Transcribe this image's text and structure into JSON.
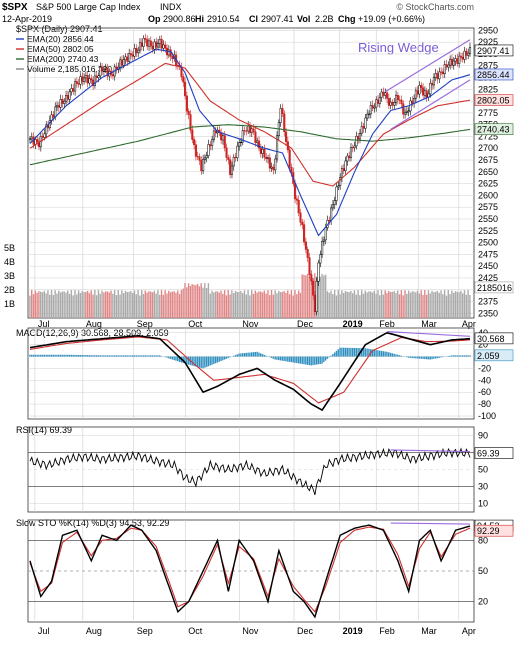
{
  "header": {
    "symbol": "$SPX",
    "name": "S&P 500 Large Cap Index",
    "exchange": "INDX",
    "date": "12-Apr-2019",
    "op_label": "Op",
    "op": "2900.86",
    "hi_label": "Hi",
    "hi": "2910.54",
    "cl_label": "Cl",
    "cl": "2907.41",
    "vol_label": "Vol",
    "vol": "2.2B",
    "chg_label": "Chg",
    "chg": "+19.09 (+0.66%)",
    "watermark": "© StockCharts.com"
  },
  "colors": {
    "price": "#000000",
    "ema20": "#1f3fbf",
    "ema50": "#d0302a",
    "ema200": "#2f6b2f",
    "up_candle": "#000000",
    "down_candle": "#cc2222",
    "volume_up": "#aaaaaa",
    "volume_down": "#e08888",
    "macd_line": "#000000",
    "signal_line": "#d03030",
    "histogram": "#2f8fbf",
    "rsi": "#000000",
    "stoch_k": "#000000",
    "stoch_d": "#d03030",
    "divergence": "#9a6ce0",
    "grid": "#cfcfcf",
    "label_box": "#ffffff"
  },
  "chart_data": {
    "type": "line",
    "x_labels": [
      "Jul",
      "Aug",
      "Sep",
      "Oct",
      "Nov",
      "Dec",
      "2019",
      "Feb",
      "Mar",
      "Apr"
    ],
    "x_label_positions": [
      2.7,
      29.3,
      57.5,
      86.1,
      116.1,
      146.4,
      171.7,
      192.0,
      215.3,
      237.8
    ],
    "x_bold": "2019",
    "n_bars": 245,
    "price_panel": {
      "legend_title": "$SPX (Daily) 2907.41",
      "legend": [
        {
          "key": "ema20",
          "label": "EMA(20) 2856.44"
        },
        {
          "key": "ema50",
          "label": "EMA(50) 2802.05"
        },
        {
          "key": "ema200",
          "label": "EMA(200) 2740.43"
        },
        {
          "key": "volume",
          "label": "Volume 2,185,016,320"
        }
      ],
      "annotation": "Rising Wedge",
      "y_ticks": [
        2350,
        2375,
        2400,
        2425,
        2450,
        2475,
        2500,
        2525,
        2550,
        2575,
        2600,
        2625,
        2650,
        2675,
        2700,
        2725,
        2750,
        2775,
        2800,
        2825,
        2850,
        2875,
        2900,
        2925,
        2950
      ],
      "ylim": [
        2340,
        2955
      ],
      "last_labels": [
        "2907.41",
        "2856.44",
        "2802.05",
        "2740.43"
      ],
      "volume_ticks": [
        "1B",
        "2B",
        "3B",
        "4B",
        "5B"
      ],
      "volume_last": "2185016",
      "price_path": [
        [
          0,
          2720
        ],
        [
          5,
          2710
        ],
        [
          10,
          2750
        ],
        [
          15,
          2790
        ],
        [
          20,
          2805
        ],
        [
          25,
          2835
        ],
        [
          30,
          2850
        ],
        [
          35,
          2840
        ],
        [
          40,
          2870
        ],
        [
          45,
          2855
        ],
        [
          50,
          2880
        ],
        [
          55,
          2895
        ],
        [
          60,
          2910
        ],
        [
          63,
          2930
        ],
        [
          68,
          2915
        ],
        [
          72,
          2925
        ],
        [
          76,
          2905
        ],
        [
          80,
          2890
        ],
        [
          84,
          2860
        ],
        [
          87,
          2785
        ],
        [
          91,
          2700
        ],
        [
          95,
          2660
        ],
        [
          99,
          2700
        ],
        [
          103,
          2740
        ],
        [
          107,
          2720
        ],
        [
          111,
          2650
        ],
        [
          115,
          2700
        ],
        [
          119,
          2740
        ],
        [
          123,
          2740
        ],
        [
          127,
          2700
        ],
        [
          131,
          2680
        ],
        [
          135,
          2650
        ],
        [
          139,
          2790
        ],
        [
          143,
          2690
        ],
        [
          147,
          2600
        ],
        [
          151,
          2530
        ],
        [
          155,
          2440
        ],
        [
          158,
          2360
        ],
        [
          160,
          2460
        ],
        [
          164,
          2530
        ],
        [
          168,
          2580
        ],
        [
          172,
          2640
        ],
        [
          176,
          2680
        ],
        [
          180,
          2710
        ],
        [
          184,
          2740
        ],
        [
          188,
          2780
        ],
        [
          192,
          2795
        ],
        [
          196,
          2820
        ],
        [
          200,
          2790
        ],
        [
          204,
          2810
        ],
        [
          208,
          2770
        ],
        [
          212,
          2800
        ],
        [
          216,
          2830
        ],
        [
          220,
          2810
        ],
        [
          224,
          2850
        ],
        [
          228,
          2860
        ],
        [
          232,
          2880
        ],
        [
          236,
          2885
        ],
        [
          240,
          2895
        ],
        [
          244,
          2907
        ]
      ],
      "ema20_path": [
        [
          0,
          2710
        ],
        [
          20,
          2790
        ],
        [
          40,
          2850
        ],
        [
          60,
          2890
        ],
        [
          70,
          2910
        ],
        [
          78,
          2905
        ],
        [
          86,
          2860
        ],
        [
          94,
          2780
        ],
        [
          104,
          2735
        ],
        [
          116,
          2720
        ],
        [
          130,
          2700
        ],
        [
          140,
          2690
        ],
        [
          150,
          2600
        ],
        [
          160,
          2515
        ],
        [
          170,
          2560
        ],
        [
          180,
          2650
        ],
        [
          190,
          2730
        ],
        [
          200,
          2780
        ],
        [
          210,
          2790
        ],
        [
          222,
          2810
        ],
        [
          234,
          2845
        ],
        [
          244,
          2856
        ]
      ],
      "ema50_path": [
        [
          0,
          2700
        ],
        [
          20,
          2750
        ],
        [
          40,
          2800
        ],
        [
          60,
          2845
        ],
        [
          75,
          2880
        ],
        [
          86,
          2870
        ],
        [
          100,
          2800
        ],
        [
          116,
          2760
        ],
        [
          130,
          2735
        ],
        [
          145,
          2700
        ],
        [
          157,
          2630
        ],
        [
          168,
          2620
        ],
        [
          180,
          2660
        ],
        [
          196,
          2730
        ],
        [
          210,
          2760
        ],
        [
          226,
          2790
        ],
        [
          244,
          2802
        ]
      ],
      "ema200_path": [
        [
          0,
          2665
        ],
        [
          30,
          2690
        ],
        [
          60,
          2715
        ],
        [
          90,
          2745
        ],
        [
          110,
          2750
        ],
        [
          130,
          2745
        ],
        [
          150,
          2735
        ],
        [
          170,
          2720
        ],
        [
          190,
          2715
        ],
        [
          210,
          2722
        ],
        [
          230,
          2732
        ],
        [
          244,
          2740
        ]
      ],
      "wedge_upper": [
        [
          197,
          2820
        ],
        [
          244,
          2930
        ]
      ],
      "wedge_lower": [
        [
          200,
          2740
        ],
        [
          244,
          2845
        ]
      ]
    },
    "macd_panel": {
      "legend": "MACD(12,26,9) 30.568, 28.509, 2.059",
      "y_ticks": [
        -100,
        -80,
        -60,
        -40,
        -20,
        0,
        20,
        40
      ],
      "ylim": [
        -105,
        48
      ],
      "last_labels": [
        "30.568",
        "2.059"
      ],
      "macd_path": [
        [
          0,
          15
        ],
        [
          20,
          25
        ],
        [
          40,
          30
        ],
        [
          60,
          35
        ],
        [
          72,
          30
        ],
        [
          86,
          -10
        ],
        [
          96,
          -60
        ],
        [
          104,
          -50
        ],
        [
          116,
          -30
        ],
        [
          126,
          -20
        ],
        [
          136,
          -40
        ],
        [
          146,
          -55
        ],
        [
          156,
          -80
        ],
        [
          162,
          -90
        ],
        [
          172,
          -45
        ],
        [
          186,
          20
        ],
        [
          198,
          40
        ],
        [
          210,
          30
        ],
        [
          222,
          20
        ],
        [
          234,
          28
        ],
        [
          244,
          30
        ]
      ],
      "signal_path": [
        [
          0,
          12
        ],
        [
          20,
          22
        ],
        [
          40,
          28
        ],
        [
          60,
          33
        ],
        [
          76,
          28
        ],
        [
          90,
          -10
        ],
        [
          102,
          -40
        ],
        [
          116,
          -35
        ],
        [
          130,
          -30
        ],
        [
          146,
          -45
        ],
        [
          160,
          -78
        ],
        [
          174,
          -60
        ],
        [
          190,
          10
        ],
        [
          206,
          32
        ],
        [
          220,
          25
        ],
        [
          234,
          26
        ],
        [
          244,
          28
        ]
      ],
      "hist_path": [
        [
          0,
          3
        ],
        [
          20,
          3
        ],
        [
          40,
          2
        ],
        [
          60,
          2
        ],
        [
          72,
          2
        ],
        [
          86,
          -12
        ],
        [
          96,
          -20
        ],
        [
          104,
          -10
        ],
        [
          116,
          5
        ],
        [
          126,
          8
        ],
        [
          136,
          -5
        ],
        [
          146,
          -10
        ],
        [
          156,
          -15
        ],
        [
          162,
          -12
        ],
        [
          172,
          15
        ],
        [
          186,
          14
        ],
        [
          198,
          8
        ],
        [
          210,
          -2
        ],
        [
          222,
          -5
        ],
        [
          234,
          2
        ],
        [
          244,
          2
        ]
      ],
      "divergence": [
        [
          198,
          42
        ],
        [
          244,
          34
        ]
      ]
    },
    "rsi_panel": {
      "legend": "RSI(14) 69.39",
      "y_ticks": [
        10,
        30,
        50,
        70,
        90
      ],
      "ylim": [
        0,
        100
      ],
      "last_label": "69.39",
      "rsi_path": [
        [
          0,
          60
        ],
        [
          10,
          55
        ],
        [
          20,
          62
        ],
        [
          30,
          65
        ],
        [
          40,
          62
        ],
        [
          50,
          64
        ],
        [
          60,
          66
        ],
        [
          70,
          60
        ],
        [
          80,
          55
        ],
        [
          86,
          40
        ],
        [
          92,
          35
        ],
        [
          100,
          55
        ],
        [
          110,
          50
        ],
        [
          120,
          55
        ],
        [
          130,
          45
        ],
        [
          140,
          50
        ],
        [
          150,
          35
        ],
        [
          158,
          25
        ],
        [
          164,
          55
        ],
        [
          172,
          62
        ],
        [
          182,
          65
        ],
        [
          192,
          68
        ],
        [
          202,
          70
        ],
        [
          212,
          62
        ],
        [
          222,
          66
        ],
        [
          232,
          70
        ],
        [
          244,
          69
        ]
      ],
      "divergence": [
        [
          200,
          73
        ],
        [
          244,
          71
        ]
      ]
    },
    "stoch_panel": {
      "legend": "Slow STO %K(14) %D(3) 94.53, 92.29",
      "y_ticks": [
        20,
        50,
        80
      ],
      "ylim": [
        0,
        100
      ],
      "last_labels": [
        "94.53",
        "92.29"
      ],
      "k_path": [
        [
          0,
          60
        ],
        [
          6,
          25
        ],
        [
          12,
          40
        ],
        [
          18,
          85
        ],
        [
          26,
          90
        ],
        [
          34,
          60
        ],
        [
          40,
          85
        ],
        [
          48,
          80
        ],
        [
          56,
          95
        ],
        [
          62,
          90
        ],
        [
          70,
          70
        ],
        [
          76,
          40
        ],
        [
          82,
          10
        ],
        [
          88,
          20
        ],
        [
          96,
          50
        ],
        [
          104,
          80
        ],
        [
          110,
          30
        ],
        [
          116,
          80
        ],
        [
          124,
          60
        ],
        [
          132,
          20
        ],
        [
          138,
          70
        ],
        [
          146,
          30
        ],
        [
          152,
          20
        ],
        [
          158,
          5
        ],
        [
          164,
          40
        ],
        [
          172,
          85
        ],
        [
          180,
          92
        ],
        [
          188,
          95
        ],
        [
          196,
          90
        ],
        [
          204,
          60
        ],
        [
          210,
          30
        ],
        [
          216,
          80
        ],
        [
          222,
          90
        ],
        [
          228,
          60
        ],
        [
          236,
          90
        ],
        [
          244,
          94
        ]
      ],
      "d_path": [
        [
          0,
          58
        ],
        [
          6,
          30
        ],
        [
          12,
          38
        ],
        [
          18,
          78
        ],
        [
          26,
          88
        ],
        [
          34,
          65
        ],
        [
          40,
          80
        ],
        [
          48,
          82
        ],
        [
          56,
          92
        ],
        [
          62,
          90
        ],
        [
          70,
          74
        ],
        [
          76,
          45
        ],
        [
          82,
          15
        ],
        [
          88,
          20
        ],
        [
          96,
          45
        ],
        [
          104,
          76
        ],
        [
          110,
          38
        ],
        [
          116,
          74
        ],
        [
          124,
          62
        ],
        [
          132,
          25
        ],
        [
          138,
          62
        ],
        [
          146,
          35
        ],
        [
          152,
          22
        ],
        [
          158,
          10
        ],
        [
          164,
          35
        ],
        [
          172,
          78
        ],
        [
          180,
          90
        ],
        [
          188,
          93
        ],
        [
          196,
          91
        ],
        [
          204,
          66
        ],
        [
          210,
          35
        ],
        [
          216,
          72
        ],
        [
          222,
          88
        ],
        [
          228,
          64
        ],
        [
          236,
          86
        ],
        [
          244,
          92
        ]
      ],
      "divergence": [
        [
          200,
          97
        ],
        [
          244,
          96
        ]
      ]
    }
  }
}
